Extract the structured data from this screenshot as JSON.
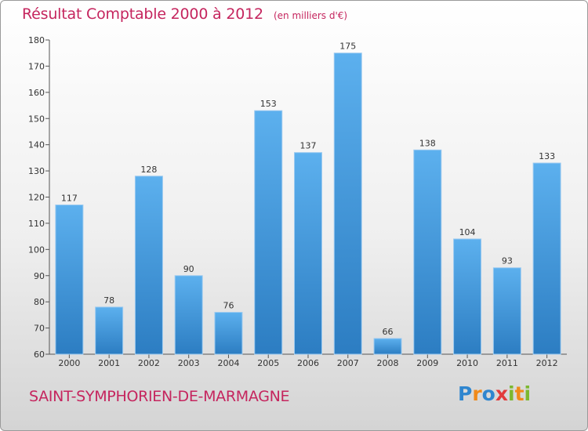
{
  "chart_data": {
    "type": "bar",
    "title": "Résultat Comptable 2000 à 2012",
    "subtitle": "(en milliers d'€)",
    "categories": [
      "2000",
      "2001",
      "2002",
      "2003",
      "2004",
      "2005",
      "2006",
      "2007",
      "2008",
      "2009",
      "2010",
      "2011",
      "2012"
    ],
    "values": [
      117,
      78,
      128,
      90,
      76,
      153,
      137,
      175,
      66,
      138,
      104,
      93,
      133
    ],
    "ylim": [
      60,
      180
    ],
    "yticks": [
      60,
      70,
      80,
      90,
      100,
      110,
      120,
      130,
      140,
      150,
      160,
      170,
      180
    ],
    "xlabel": "",
    "ylabel": "",
    "grid": false,
    "bar_color": "#3b8fd6"
  },
  "footer": {
    "commune": "SAINT-SYMPHORIEN-DE-MARMAGNE",
    "logo_text": "Proxiti",
    "logo_letters": [
      {
        "ch": "P",
        "color": "#2f86cf"
      },
      {
        "ch": "r",
        "color": "#f08a1a"
      },
      {
        "ch": "o",
        "color": "#2f86cf"
      },
      {
        "ch": "x",
        "color": "#e23b3b"
      },
      {
        "ch": "i",
        "color": "#7cb82f"
      },
      {
        "ch": "t",
        "color": "#f08a1a"
      },
      {
        "ch": "i",
        "color": "#7cb82f"
      }
    ]
  }
}
